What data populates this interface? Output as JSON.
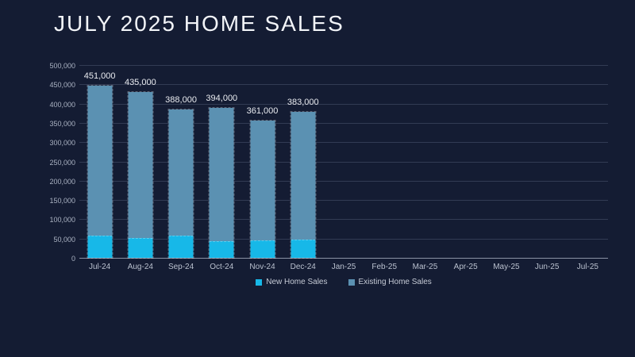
{
  "slide": {
    "title": "JULY 2025 HOME SALES"
  },
  "colors": {
    "background": "#141C33",
    "title_text": "#F2F4F8",
    "axis_label": "#AAB2C2",
    "category_label": "#B9C0CE",
    "data_label": "#E9EBF0",
    "gridline": "#323B54",
    "axis_line": "#8A92A4",
    "new_home_sales": "#17B8E8",
    "existing_home_sales": "#5B91B2"
  },
  "chart_data": {
    "type": "bar",
    "stacked": true,
    "title": "JULY 2025 HOME SALES",
    "xlabel": "",
    "ylabel": "",
    "categories": [
      "Jul-24",
      "Aug-24",
      "Sep-24",
      "Oct-24",
      "Nov-24",
      "Dec-24",
      "Jan-25",
      "Feb-25",
      "Mar-25",
      "Apr-25",
      "May-25",
      "Jun-25",
      "Jul-25"
    ],
    "series": [
      {
        "name": "New Home Sales",
        "color": "#17B8E8",
        "values": [
          57000,
          52000,
          58000,
          44000,
          45000,
          48000,
          null,
          null,
          null,
          null,
          null,
          null,
          null
        ]
      },
      {
        "name": "Existing Home Sales",
        "color": "#5B91B2",
        "values": [
          394000,
          383000,
          330000,
          350000,
          316000,
          335000,
          null,
          null,
          null,
          null,
          null,
          null,
          null
        ]
      }
    ],
    "totals": [
      451000,
      435000,
      388000,
      394000,
      361000,
      383000,
      null,
      null,
      null,
      null,
      null,
      null,
      null
    ],
    "total_labels": [
      "451,000",
      "435,000",
      "388,000",
      "394,000",
      "361,000",
      "383,000",
      "",
      "",
      "",
      "",
      "",
      "",
      ""
    ],
    "ylim": [
      0,
      500000
    ],
    "ytick_interval": 50000,
    "ytick_labels": [
      "0",
      "50,000",
      "100,000",
      "150,000",
      "200,000",
      "250,000",
      "300,000",
      "350,000",
      "400,000",
      "450,000",
      "500,000"
    ],
    "grid": "horizontal",
    "legend_position": "bottom"
  }
}
